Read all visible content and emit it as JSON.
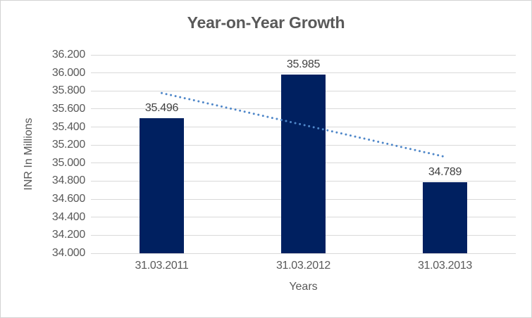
{
  "chart_data": {
    "type": "bar",
    "title": "Year-on-Year Growth",
    "xlabel": "Years",
    "ylabel": "INR In Millions",
    "categories": [
      "31.03.2011",
      "31.03.2012",
      "31.03.2013"
    ],
    "values": [
      35.496,
      35.985,
      34.789
    ],
    "ylim": [
      34.0,
      36.2
    ],
    "ytick_step": 0.2,
    "ytick_decimals": 3,
    "label_decimals": 3,
    "grid": true,
    "legend": "none",
    "trendline": {
      "type": "linear",
      "style": "dotted",
      "start_value": 35.777,
      "end_value": 35.07
    },
    "colors": {
      "bar": "#002060",
      "trendline": "#4f87c9",
      "gridline": "#d9d9d9",
      "axis_text": "#595959",
      "title_text": "#595959",
      "data_label_text": "#404040",
      "border": "#d3d3d3",
      "background": "#ffffff"
    }
  }
}
